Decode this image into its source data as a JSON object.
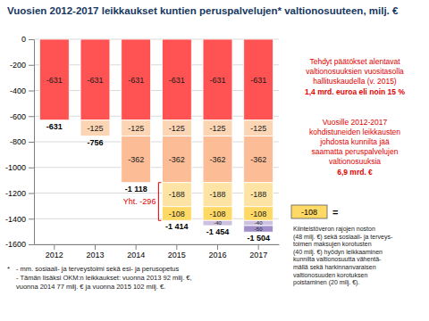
{
  "chart_data": {
    "type": "bar",
    "stacked": true,
    "data_labels": true,
    "grid": true,
    "title": "Vuosien 2012-2017 leikkaukset kuntien peruspalvelujen* valtionosuuteen, milj. €",
    "categories": [
      "2012",
      "2013",
      "2014",
      "2015",
      "2016",
      "2017"
    ],
    "ylim": [
      -1600,
      0
    ],
    "yticks": [
      -1600,
      -1400,
      -1200,
      -1000,
      -800,
      -600,
      -400,
      -200,
      0
    ],
    "series": [
      {
        "color": "#ff5252",
        "values": [
          -631,
          -631,
          -631,
          -631,
          -631,
          -631
        ]
      },
      {
        "color": "#fcd5b5",
        "values": [
          null,
          -125,
          -125,
          -125,
          -125,
          -125
        ]
      },
      {
        "color": "#fbbc96",
        "values": [
          null,
          null,
          -362,
          -362,
          -362,
          -362
        ]
      },
      {
        "color": "#fde4a4",
        "values": [
          null,
          null,
          null,
          -188,
          -188,
          -188
        ]
      },
      {
        "color": "#ffd966",
        "values": [
          null,
          null,
          null,
          -108,
          -108,
          -108
        ],
        "note": {
          "label": "-108",
          "sign": "=",
          "lines": [
            "Kiinteistöveron rajojen noston",
            "(48 milj. €) sekä sosiaali- ja terveys-",
            "toimen maksujen korotusten",
            "(40 milj. €) hyödyn leikkaaminen",
            "kunnilta valtionosuutta vähentä-",
            "mällä sekä harkinnanvaraisen",
            "valtionosuuden korotuksen",
            "poistaminen (20 milj. €)."
          ]
        }
      },
      {
        "color": "#ccc1e0",
        "values": [
          null,
          null,
          null,
          null,
          -40,
          -40
        ]
      },
      {
        "color": "#a08fca",
        "values": [
          null,
          null,
          null,
          null,
          null,
          -50
        ]
      }
    ],
    "totals": [
      -631,
      -756,
      -1118,
      -1414,
      -1454,
      -1504
    ],
    "total_labels": [
      "-631",
      "-756",
      "-1 118",
      "-1 414",
      "-1 454",
      "-1 504"
    ],
    "bracket": {
      "text": "Yht. -296",
      "category": "2015",
      "from": -1118,
      "value": -296
    },
    "notes": [
      {
        "lines": [
          "Tehdyt päätökset alentavat",
          "valtionosuuksien vuositasolla",
          "hallituskaudella (v. 2015)"
        ],
        "emphasis": "1,4 mrd. euroa eli noin 15 %"
      },
      {
        "lines": [
          "Vuosille 2012-2017",
          "kohdistuneiden leikkausten",
          "johdosta kunnilta jää",
          "saamatta peruspalvelujen",
          "valtionosuuksia"
        ],
        "emphasis": "6,9 mrd. €"
      }
    ],
    "footnote_marker": "*",
    "footnotes": [
      "- mm. sosiaali- ja terveystoimi sekä esi- ja perusopetus",
      "- Tämän lisäksi OKM:n leikkaukset: vuonna 2013 92 milj. €,",
      "vuonna 2014 77 milj. € ja vuonna 2015 102 milj. €."
    ]
  }
}
